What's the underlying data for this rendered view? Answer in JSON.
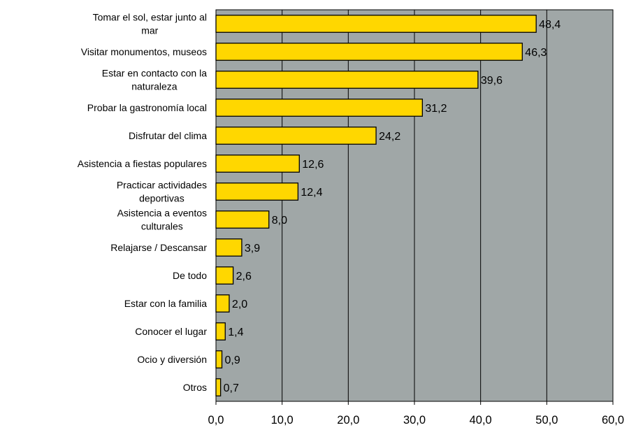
{
  "chart_data": {
    "type": "bar",
    "orientation": "horizontal",
    "categories": [
      [
        "Tomar el sol, estar junto al",
        "mar"
      ],
      [
        "Visitar monumentos, museos"
      ],
      [
        "Estar en contacto con la",
        "naturaleza"
      ],
      [
        "Probar la gastronomía local"
      ],
      [
        "Disfrutar del clima"
      ],
      [
        "Asistencia a fiestas populares"
      ],
      [
        "Practicar actividades",
        "deportivas"
      ],
      [
        "Asistencia a eventos",
        "culturales"
      ],
      [
        "Relajarse / Descansar"
      ],
      [
        "De todo"
      ],
      [
        "Estar con la familia"
      ],
      [
        "Conocer el lugar"
      ],
      [
        "Ocio y diversión"
      ],
      [
        "Otros"
      ]
    ],
    "values": [
      48.4,
      46.3,
      39.6,
      31.2,
      24.2,
      12.6,
      12.4,
      8.0,
      3.9,
      2.6,
      2.0,
      1.4,
      0.9,
      0.7
    ],
    "value_labels": [
      "48,4",
      "46,3",
      "39,6",
      "31,2",
      "24,2",
      "12,6",
      "12,4",
      "8,0",
      "3,9",
      "2,6",
      "2,0",
      "1,4",
      "0,9",
      "0,7"
    ],
    "xlim": [
      0,
      60
    ],
    "xticks": [
      0,
      10,
      20,
      30,
      40,
      50,
      60
    ],
    "xtick_labels": [
      "0,0",
      "10,0",
      "20,0",
      "30,0",
      "40,0",
      "50,0",
      "60,0"
    ],
    "grid": "vertical",
    "colors": {
      "bar_fill": "#ffd700",
      "bar_stroke": "#000000",
      "plot_background": "#a0a7a7",
      "grid": "#000000"
    }
  }
}
